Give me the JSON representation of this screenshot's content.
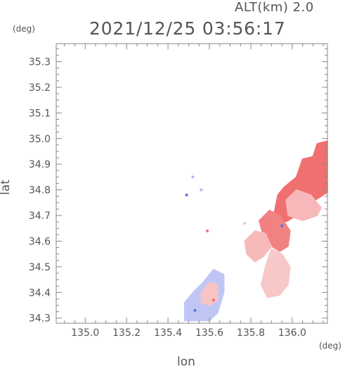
{
  "header": {
    "altitude_label": "ALT(km) 2.0",
    "datetime": "2021/12/25 03:56:17"
  },
  "axes": {
    "y_unit": "(deg)",
    "x_unit": "(deg)",
    "xlabel": "lon",
    "ylabel": "lat"
  },
  "map_data": {
    "type": "heatmap",
    "xlim": [
      134.86,
      136.17
    ],
    "ylim": [
      34.28,
      35.37
    ],
    "x_ticks": [
      135.0,
      135.2,
      135.4,
      135.6,
      135.8,
      136.0
    ],
    "x_tick_labels": [
      "135.0",
      "135.2",
      "135.4",
      "135.6",
      "135.8",
      "136.0"
    ],
    "y_ticks": [
      34.3,
      34.4,
      34.5,
      34.6,
      34.7,
      34.8,
      34.9,
      35.0,
      35.1,
      35.2,
      35.3
    ],
    "y_tick_labels": [
      "34.3",
      "34.4",
      "34.5",
      "34.6",
      "34.7",
      "34.8",
      "34.9",
      "35.0",
      "35.1",
      "35.2",
      "35.3"
    ],
    "colors": {
      "positive_strong": "#f07070",
      "positive_weak": "#f8c8c8",
      "negative": "#b0b8f0",
      "negative_strong": "#6070e0",
      "frame": "#888888"
    },
    "regions": [
      {
        "name": "north-east-band",
        "color": "#f07070",
        "points": [
          [
            136.17,
            34.99
          ],
          [
            136.12,
            34.98
          ],
          [
            136.1,
            34.93
          ],
          [
            136.05,
            34.92
          ],
          [
            136.02,
            34.85
          ],
          [
            135.96,
            34.81
          ],
          [
            135.93,
            34.78
          ],
          [
            135.91,
            34.7
          ],
          [
            135.92,
            34.66
          ],
          [
            135.98,
            34.68
          ],
          [
            136.06,
            34.72
          ],
          [
            136.11,
            34.76
          ],
          [
            136.17,
            34.79
          ]
        ]
      },
      {
        "name": "north-east-band-pale",
        "color": "#f6b8b8",
        "points": [
          [
            136.02,
            34.8
          ],
          [
            136.09,
            34.78
          ],
          [
            136.14,
            34.73
          ],
          [
            136.12,
            34.7
          ],
          [
            136.05,
            34.68
          ],
          [
            135.98,
            34.7
          ],
          [
            135.97,
            34.76
          ]
        ]
      },
      {
        "name": "central-band",
        "color": "#f28282",
        "points": [
          [
            135.89,
            34.72
          ],
          [
            135.94,
            34.7
          ],
          [
            135.99,
            34.64
          ],
          [
            135.98,
            34.58
          ],
          [
            135.94,
            34.56
          ],
          [
            135.9,
            34.58
          ],
          [
            135.86,
            34.62
          ],
          [
            135.84,
            34.68
          ]
        ]
      },
      {
        "name": "mid-east-patch",
        "color": "#f6baba",
        "points": [
          [
            135.82,
            34.64
          ],
          [
            135.87,
            34.63
          ],
          [
            135.9,
            34.58
          ],
          [
            135.86,
            34.54
          ],
          [
            135.82,
            34.52
          ],
          [
            135.78,
            34.55
          ],
          [
            135.77,
            34.6
          ]
        ]
      },
      {
        "name": "south-east-patch",
        "color": "#f8c8c8",
        "points": [
          [
            135.9,
            34.57
          ],
          [
            135.95,
            34.55
          ],
          [
            135.99,
            34.5
          ],
          [
            135.98,
            34.43
          ],
          [
            135.94,
            34.39
          ],
          [
            135.88,
            34.38
          ],
          [
            135.85,
            34.43
          ],
          [
            135.87,
            34.5
          ]
        ]
      },
      {
        "name": "south-west-blue",
        "color": "#c0c6f4",
        "points": [
          [
            135.48,
            34.29
          ],
          [
            135.48,
            34.36
          ],
          [
            135.52,
            34.4
          ],
          [
            135.57,
            34.44
          ],
          [
            135.62,
            34.49
          ],
          [
            135.67,
            34.47
          ],
          [
            135.67,
            34.4
          ],
          [
            135.64,
            34.32
          ],
          [
            135.6,
            34.29
          ]
        ]
      },
      {
        "name": "south-west-pink",
        "color": "#f6c4c4",
        "points": [
          [
            135.56,
            34.4
          ],
          [
            135.6,
            34.44
          ],
          [
            135.64,
            34.43
          ],
          [
            135.64,
            34.37
          ],
          [
            135.6,
            34.35
          ],
          [
            135.56,
            34.36
          ]
        ]
      }
    ],
    "specks": [
      {
        "lon": 135.49,
        "lat": 34.78,
        "color": "#6070e0"
      },
      {
        "lon": 135.52,
        "lat": 34.85,
        "color": "#b0b8f0"
      },
      {
        "lon": 135.56,
        "lat": 34.8,
        "color": "#b0b8f0"
      },
      {
        "lon": 135.59,
        "lat": 34.64,
        "color": "#f07070"
      },
      {
        "lon": 135.77,
        "lat": 34.67,
        "color": "#f8c8c8"
      },
      {
        "lon": 135.62,
        "lat": 34.37,
        "color": "#f07070"
      },
      {
        "lon": 135.53,
        "lat": 34.33,
        "color": "#6070e0"
      },
      {
        "lon": 135.95,
        "lat": 34.66,
        "color": "#6070e0"
      }
    ]
  }
}
